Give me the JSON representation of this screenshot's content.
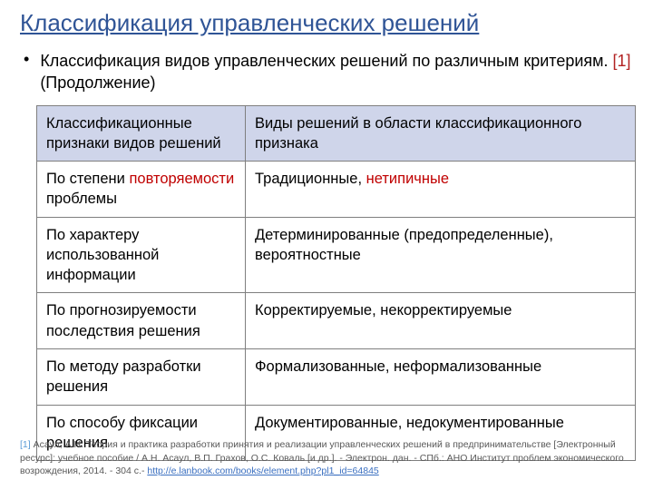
{
  "title": "Классификация управленческих решений",
  "bullet": {
    "text_main": "Классификация видов управленческих решений по различным критериям. ",
    "ref": "[1]",
    "cont": "(Продолжение)"
  },
  "table": {
    "header": {
      "col1": "Классификационные признаки видов решений",
      "col2": "Виды решений в области  классификационного признака"
    },
    "rows": [
      {
        "c1_pre": "По степени ",
        "c1_em": "повторяемости",
        "c1_post": " проблемы",
        "c2_pre": "Традиционные, ",
        "c2_em": "нетипичные",
        "c2_post": ""
      },
      {
        "c1_pre": "По характеру использованной информации",
        "c1_em": "",
        "c1_post": "",
        "c2_pre": "Детерминированные (предопределенные), вероятностные",
        "c2_em": "",
        "c2_post": ""
      },
      {
        "c1_pre": "По прогнозируемости последствия решения",
        "c1_em": "",
        "c1_post": "",
        "c2_pre": "Корректируемые, некорректируемые",
        "c2_em": "",
        "c2_post": ""
      },
      {
        "c1_pre": "По методу разработки решения",
        "c1_em": "",
        "c1_post": "",
        "c2_pre": "Формализованные, неформализованные",
        "c2_em": "",
        "c2_post": ""
      },
      {
        "c1_pre": "По способу фиксации решения",
        "c1_em": "",
        "c1_post": "",
        "c2_pre": "Документированные, недокументированные",
        "c2_em": "",
        "c2_post": ""
      }
    ]
  },
  "footnote": {
    "ref": "[1] ",
    "body": "Асаул, А.Н. Теория и практика разработки принятия и реализации управленческих решений в предпринимательстве [Электронный ресурс]: учебное пособие / А.Н. Асаул, В.П. Грахов, О.С. Коваль [и др.]. - Электрон. дан. - СПб.: АНО Институт проблем экономического возрождения, 2014. - 304 с.- ",
    "link": "http://e.lanbook.com/books/element.php?pl1_id=64845"
  },
  "colors": {
    "title": "#2f5496",
    "header_bg": "#cfd5ea",
    "border": "#7f7f7f",
    "emph": "#c00000",
    "footnote_text": "#595959",
    "fn_ref": "#5a9bd5",
    "link": "#3a6fc0",
    "background": "#ffffff"
  }
}
